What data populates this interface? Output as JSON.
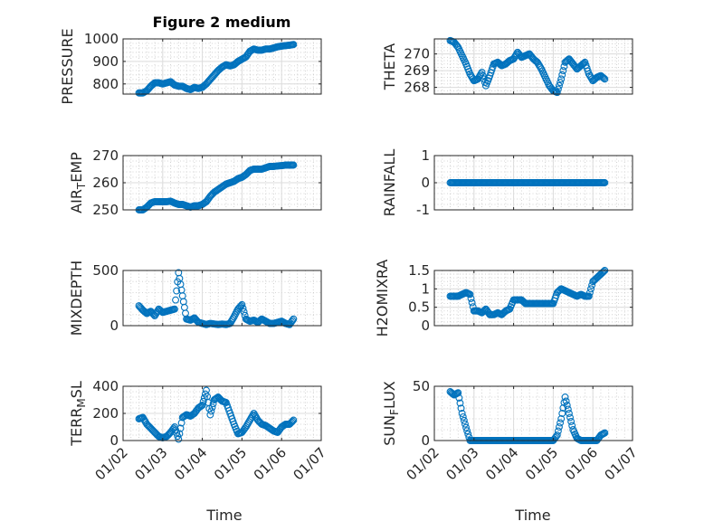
{
  "figure_title": "Figure 2 medium",
  "marker_color": "#0072BD",
  "chart_data": [
    {
      "type": "scatter",
      "id": "pressure",
      "ylabel_parts": [
        "PRESSURE"
      ],
      "ylim": [
        755,
        1000
      ],
      "yticks": [
        800,
        900,
        1000
      ],
      "ytick_labels": [
        "800",
        "900",
        "1000"
      ],
      "values": [
        760,
        760,
        770,
        790,
        805,
        805,
        800,
        805,
        810,
        795,
        790,
        790,
        780,
        775,
        785,
        780,
        785,
        800,
        820,
        840,
        860,
        875,
        885,
        880,
        885,
        900,
        910,
        920,
        945,
        955,
        950,
        950,
        955,
        955,
        960,
        965,
        968,
        970,
        972,
        975
      ]
    },
    {
      "type": "scatter",
      "id": "theta",
      "ylabel_parts": [
        "THETA"
      ],
      "ylim": [
        267.6,
        270.9
      ],
      "yticks": [
        268,
        269,
        270
      ],
      "ytick_labels": [
        "268",
        "269",
        "270"
      ],
      "values": [
        270.8,
        270.7,
        270.4,
        269.9,
        269.4,
        268.8,
        268.4,
        268.5,
        268.9,
        268.1,
        268.7,
        269.4,
        269.5,
        269.3,
        269.4,
        269.6,
        269.7,
        270.1,
        269.8,
        269.9,
        270.0,
        269.7,
        269.5,
        269.1,
        268.6,
        268.1,
        267.8,
        267.7,
        268.5,
        269.5,
        269.7,
        269.4,
        269.1,
        269.3,
        269.5,
        268.8,
        268.4,
        268.6,
        268.7,
        268.5
      ]
    },
    {
      "type": "scatter",
      "id": "air_temp",
      "ylabel_parts": [
        "AIR",
        "T",
        "EMP"
      ],
      "ylim": [
        250,
        270
      ],
      "yticks": [
        250,
        260,
        270
      ],
      "ytick_labels": [
        "250",
        "260",
        "270"
      ],
      "values": [
        250,
        250,
        251,
        252.5,
        253,
        253,
        253,
        253,
        253.2,
        252.5,
        252,
        252,
        251.5,
        251,
        251.5,
        251.5,
        252,
        253,
        255,
        256.5,
        257.5,
        258.5,
        259.5,
        260,
        260.5,
        261.5,
        262,
        263,
        264.5,
        265,
        265,
        265,
        265.5,
        266,
        266,
        266.2,
        266.3,
        266.5,
        266.5,
        266.5
      ]
    },
    {
      "type": "scatter",
      "id": "rainfall",
      "ylabel_parts": [
        "RAINFALL"
      ],
      "ylim": [
        -1,
        1
      ],
      "yticks": [
        -1,
        0,
        1
      ],
      "ytick_labels": [
        "-1",
        "0",
        "1"
      ],
      "values": [
        0,
        0,
        0,
        0,
        0,
        0,
        0,
        0,
        0,
        0,
        0,
        0,
        0,
        0,
        0,
        0,
        0,
        0,
        0,
        0,
        0,
        0,
        0,
        0,
        0,
        0,
        0,
        0,
        0,
        0,
        0,
        0,
        0,
        0,
        0,
        0,
        0,
        0,
        0,
        0
      ]
    },
    {
      "type": "scatter",
      "id": "mixdepth",
      "ylabel_parts": [
        "MIXDEPTH"
      ],
      "ylim": [
        0,
        500
      ],
      "yticks": [
        0,
        500
      ],
      "ytick_labels": [
        "0",
        "500"
      ],
      "values": [
        180,
        140,
        110,
        130,
        90,
        150,
        120,
        130,
        140,
        150,
        480,
        270,
        60,
        50,
        70,
        30,
        20,
        10,
        20,
        15,
        10,
        15,
        10,
        20,
        80,
        150,
        190,
        60,
        40,
        50,
        30,
        60,
        40,
        20,
        20,
        30,
        40,
        20,
        10,
        60
      ]
    },
    {
      "type": "scatter",
      "id": "h2omixra",
      "ylabel_parts": [
        "H2OMIXRA"
      ],
      "ylim": [
        0,
        1.5
      ],
      "yticks": [
        0,
        0.5,
        1,
        1.5
      ],
      "ytick_labels": [
        "0",
        "0.5",
        "1",
        "1.5"
      ],
      "values": [
        0.8,
        0.8,
        0.8,
        0.85,
        0.9,
        0.85,
        0.4,
        0.4,
        0.35,
        0.45,
        0.3,
        0.3,
        0.35,
        0.3,
        0.4,
        0.45,
        0.7,
        0.7,
        0.7,
        0.6,
        0.6,
        0.6,
        0.6,
        0.6,
        0.6,
        0.6,
        0.6,
        0.9,
        1.0,
        0.95,
        0.9,
        0.85,
        0.8,
        0.85,
        0.8,
        0.8,
        1.2,
        1.3,
        1.4,
        1.5
      ]
    },
    {
      "type": "scatter",
      "id": "terr_msl",
      "ylabel_parts": [
        "TERR",
        "M",
        "SL"
      ],
      "ylim": [
        0,
        400
      ],
      "yticks": [
        0,
        200,
        400
      ],
      "ytick_labels": [
        "0",
        "200",
        "400"
      ],
      "values": [
        160,
        170,
        120,
        90,
        60,
        30,
        20,
        30,
        60,
        100,
        10,
        170,
        190,
        180,
        200,
        240,
        260,
        370,
        190,
        300,
        320,
        290,
        280,
        200,
        120,
        50,
        60,
        100,
        150,
        200,
        150,
        120,
        110,
        90,
        70,
        60,
        100,
        120,
        120,
        150
      ]
    },
    {
      "type": "scatter",
      "id": "sun_flux",
      "ylabel_parts": [
        "SUN",
        "F",
        "LUX"
      ],
      "ylim": [
        0,
        50
      ],
      "yticks": [
        0,
        50
      ],
      "ytick_labels": [
        "0",
        "50"
      ],
      "values": [
        45,
        42,
        44,
        25,
        12,
        0,
        0,
        0,
        0,
        0,
        0,
        0,
        0,
        0,
        0,
        0,
        0,
        0,
        0,
        0,
        0,
        0,
        0,
        0,
        0,
        0,
        0,
        5,
        20,
        40,
        25,
        10,
        2,
        0,
        0,
        0,
        0,
        0,
        5,
        7
      ]
    }
  ],
  "x_days": [
    2.4,
    2.5,
    2.6,
    2.7,
    2.8,
    2.9,
    3.0,
    3.1,
    3.2,
    3.3,
    3.4,
    3.5,
    3.6,
    3.7,
    3.8,
    3.9,
    4.0,
    4.1,
    4.2,
    4.3,
    4.4,
    4.5,
    4.6,
    4.7,
    4.8,
    4.9,
    5.0,
    5.1,
    5.2,
    5.3,
    5.4,
    5.5,
    5.6,
    5.7,
    5.8,
    5.9,
    6.0,
    6.1,
    6.2,
    6.3
  ],
  "xlim_days": [
    2,
    7
  ],
  "xtick_days": [
    2,
    3,
    4,
    5,
    6,
    7
  ],
  "xtick_labels": [
    "01/02",
    "01/03",
    "01/04",
    "01/05",
    "01/06",
    "01/07"
  ],
  "xlabel": "Time"
}
